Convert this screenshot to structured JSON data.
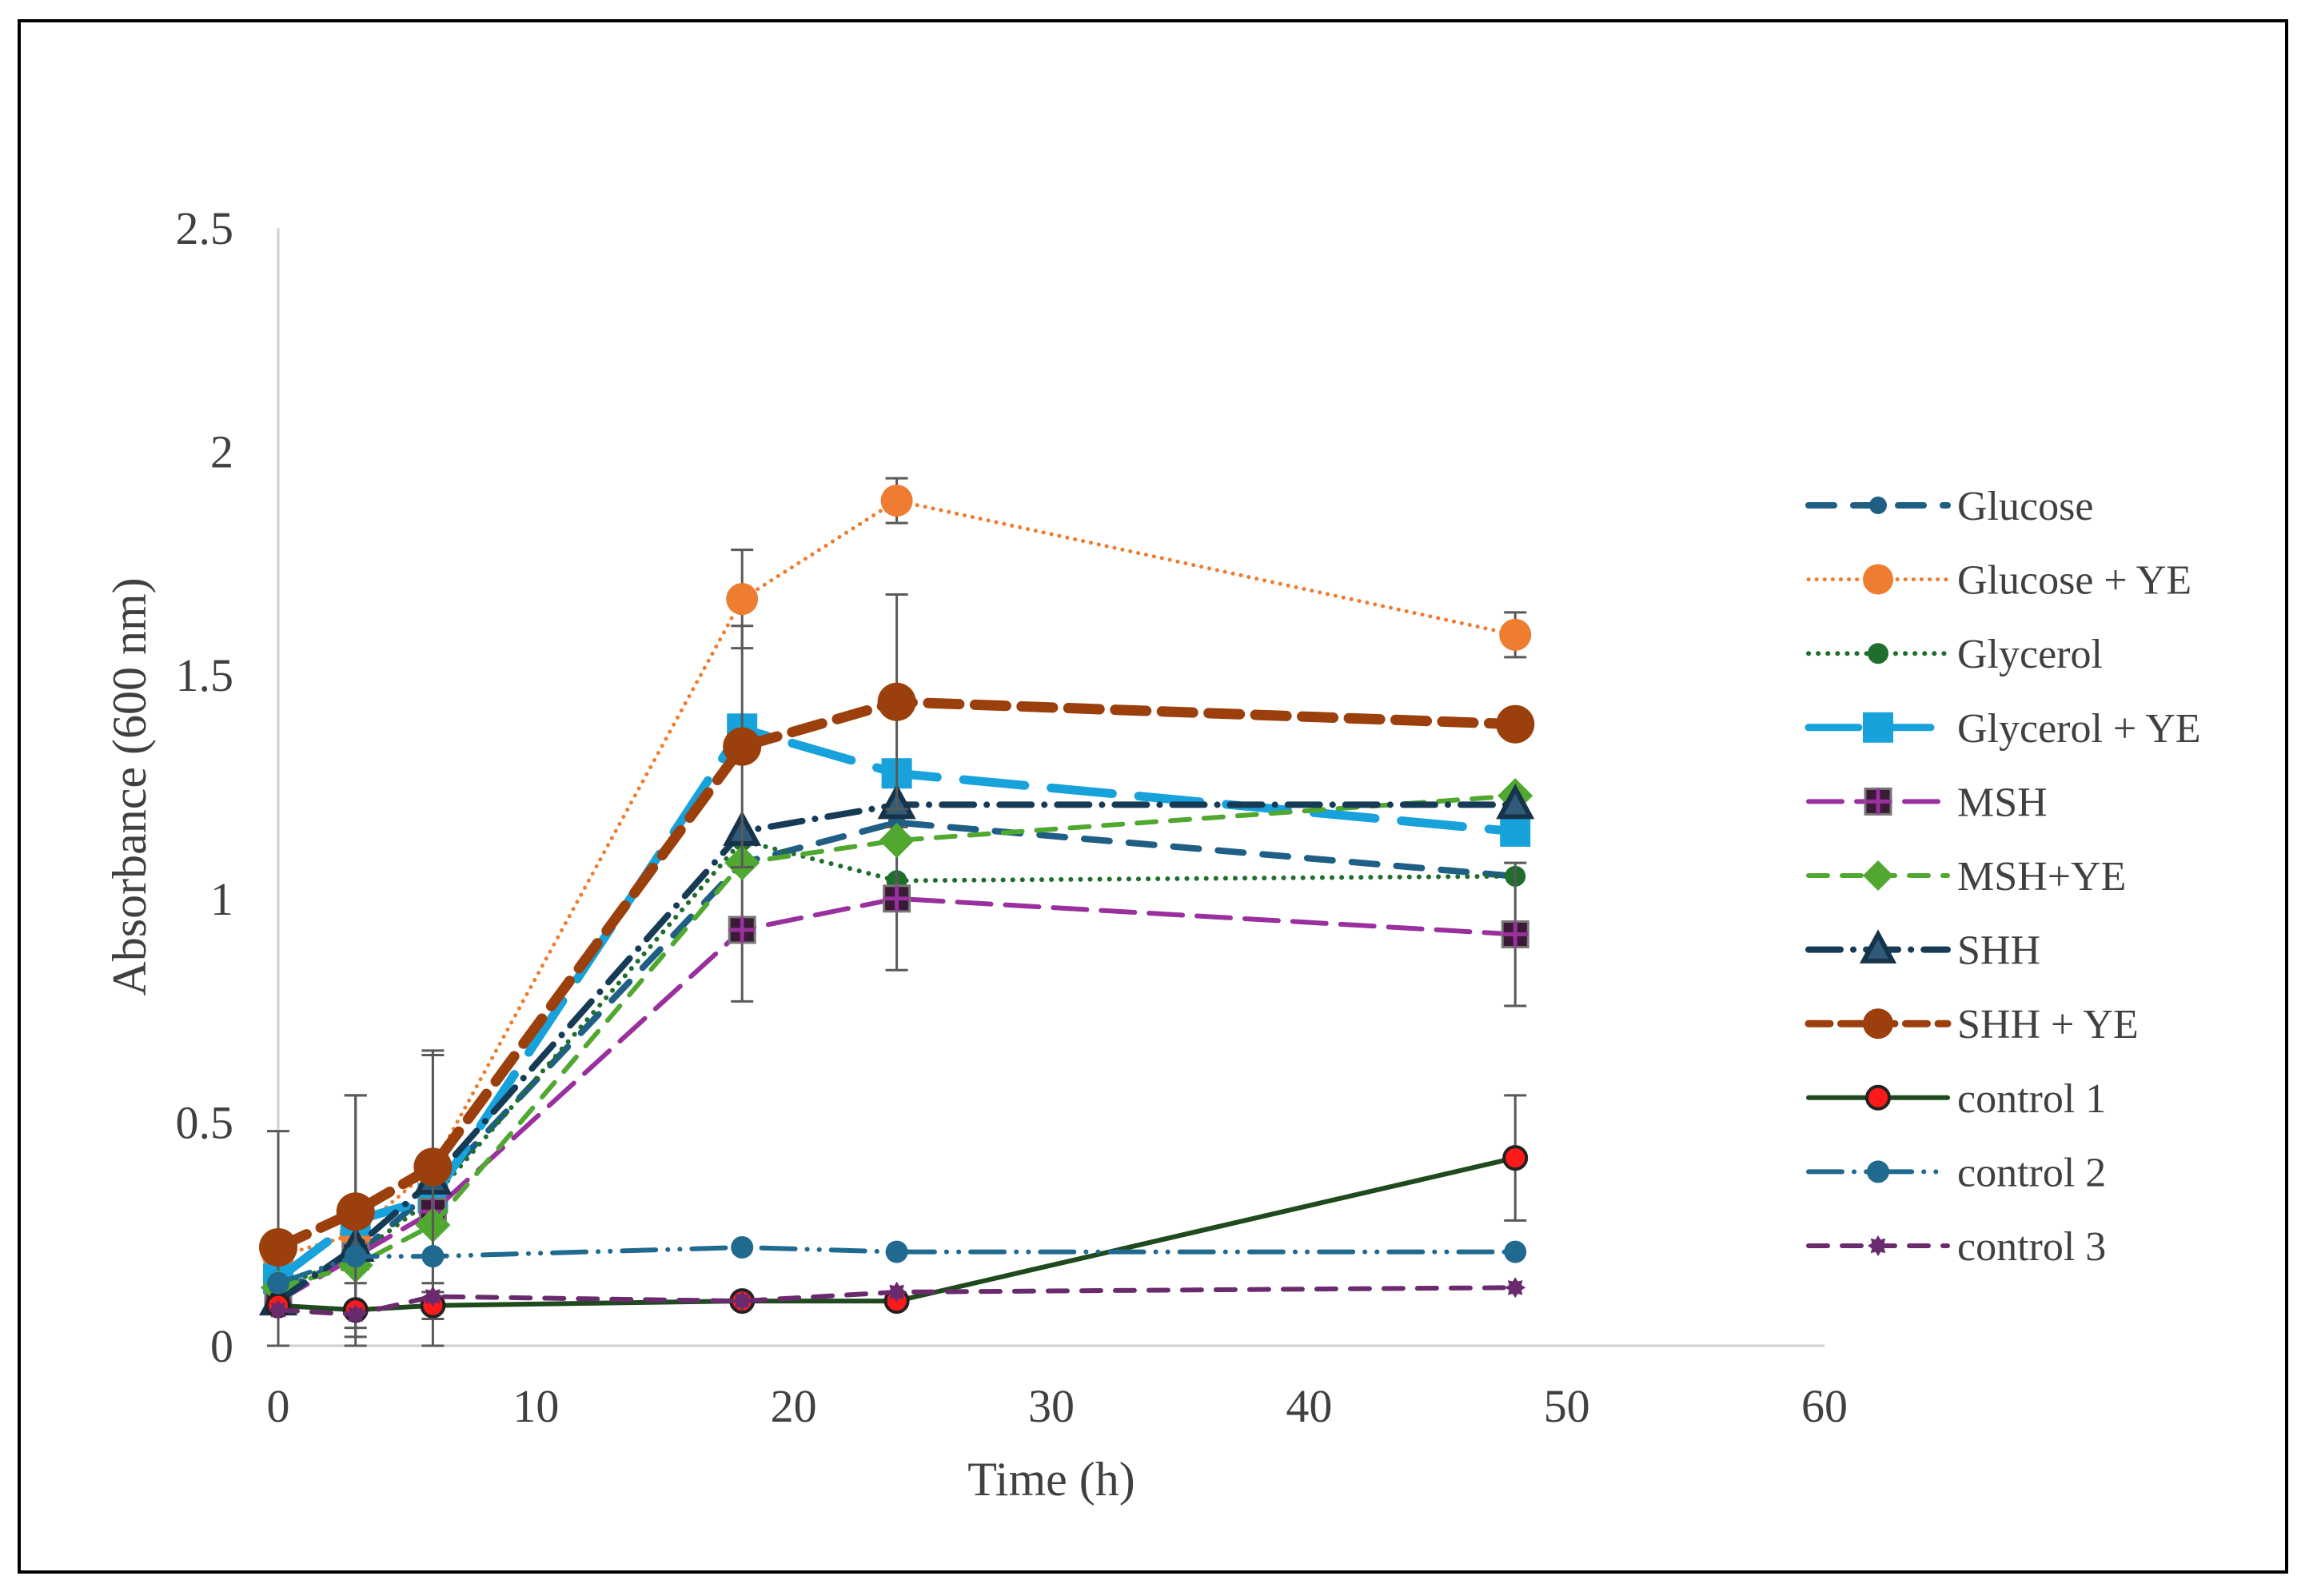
{
  "chart_data": {
    "type": "line",
    "title": "",
    "xlabel": "Time (h)",
    "ylabel": "Absorbance (600 nm)",
    "xlim": [
      0,
      60
    ],
    "ylim": [
      0,
      2.5
    ],
    "xticks": [
      0,
      10,
      20,
      30,
      40,
      50,
      60
    ],
    "yticks": [
      0,
      0.5,
      1,
      1.5,
      2,
      2.5
    ],
    "xtick_labels": [
      "0",
      "10",
      "20",
      "30",
      "40",
      "50",
      "60"
    ],
    "ytick_labels": [
      "0",
      "0.5",
      "1",
      "1.5",
      "2",
      "2.5"
    ],
    "legend_position": "right",
    "x": [
      0,
      3,
      6,
      18,
      24,
      48
    ],
    "series": [
      {
        "name": "Glucose",
        "values": [
          0.12,
          0.2,
          0.35,
          1.08,
          1.17,
          1.05
        ],
        "err": [
          0,
          0,
          0,
          0,
          0,
          0
        ],
        "color": "#1f5f85",
        "dash": "dash",
        "marker": "circle",
        "marker_size": 11,
        "line_width": 8
      },
      {
        "name": "Glucose + YE",
        "values": [
          0.2,
          0.25,
          0.4,
          1.67,
          1.89,
          1.59
        ],
        "err": [
          0,
          0,
          0,
          0.11,
          0.05,
          0.05
        ],
        "color": "#ee7d31",
        "dash": "dot",
        "marker": "circle",
        "marker_size": 20,
        "line_width": 5
      },
      {
        "name": "Glycerol",
        "values": [
          0.13,
          0.2,
          0.33,
          1.13,
          1.04,
          1.05
        ],
        "err": [
          0,
          0,
          0,
          0,
          0,
          0
        ],
        "color": "#1f6e2d",
        "dash": "dot",
        "marker": "circle",
        "marker_size": 13,
        "line_width": 6
      },
      {
        "name": "Glycerol + YE",
        "values": [
          0.15,
          0.28,
          0.33,
          1.38,
          1.28,
          1.15
        ],
        "err": [
          0,
          0,
          0,
          0,
          0,
          0
        ],
        "color": "#17a2db",
        "dash": "longdash",
        "marker": "square",
        "marker_size": 19,
        "line_width": 11
      },
      {
        "name": "MSH",
        "values": [
          0.1,
          0.2,
          0.3,
          0.93,
          1.0,
          0.92
        ],
        "err": [
          0.38,
          0.36,
          0.35,
          0.16,
          0.16,
          0.16
        ],
        "color": "#9a2f9e",
        "dash": "longdash",
        "marker": "square-plus",
        "marker_size": 16,
        "line_width": 6
      },
      {
        "name": "MSH+YE",
        "values": [
          0.13,
          0.18,
          0.27,
          1.08,
          1.13,
          1.23
        ],
        "err": [
          0,
          0,
          0,
          0,
          0,
          0
        ],
        "color": "#50a830",
        "dash": "dash",
        "marker": "diamond",
        "marker_size": 22,
        "line_width": 6
      },
      {
        "name": "SHH",
        "values": [
          0.1,
          0.22,
          0.37,
          1.15,
          1.21,
          1.21
        ],
        "err": [
          0,
          0,
          0,
          0,
          0,
          0
        ],
        "color": "#163b57",
        "dash": "dashdot",
        "marker": "triangle",
        "marker_size": 20,
        "line_width": 8
      },
      {
        "name": "SHH + YE",
        "values": [
          0.22,
          0.3,
          0.4,
          1.34,
          1.44,
          1.39
        ],
        "err": [
          0,
          0.26,
          0.26,
          0.27,
          0.24,
          0
        ],
        "color": "#9b3f0c",
        "dash": "heavydash",
        "marker": "circle",
        "marker_size": 24,
        "line_width": 13
      },
      {
        "name": "control 1",
        "values": [
          0.09,
          0.08,
          0.09,
          0.1,
          0.1,
          0.42
        ],
        "err": [
          0,
          0.06,
          0.03,
          0,
          0,
          0.14
        ],
        "color": "#1e4a1e",
        "dash": "solid",
        "marker": "circle-red",
        "marker_size": 14,
        "line_width": 6
      },
      {
        "name": "control 2",
        "values": [
          0.14,
          0.2,
          0.2,
          0.22,
          0.21,
          0.21
        ],
        "err": [
          0,
          0,
          0,
          0,
          0,
          0
        ],
        "color": "#1f6a8e",
        "dash": "dashdotdot",
        "marker": "circle",
        "marker_size": 14,
        "line_width": 6
      },
      {
        "name": "control 3",
        "values": [
          0.08,
          0.07,
          0.11,
          0.1,
          0.12,
          0.13
        ],
        "err": [
          0,
          0,
          0,
          0,
          0,
          0
        ],
        "color": "#6a2b6e",
        "dash": "dash",
        "marker": "flower",
        "marker_size": 13,
        "line_width": 6
      }
    ]
  }
}
